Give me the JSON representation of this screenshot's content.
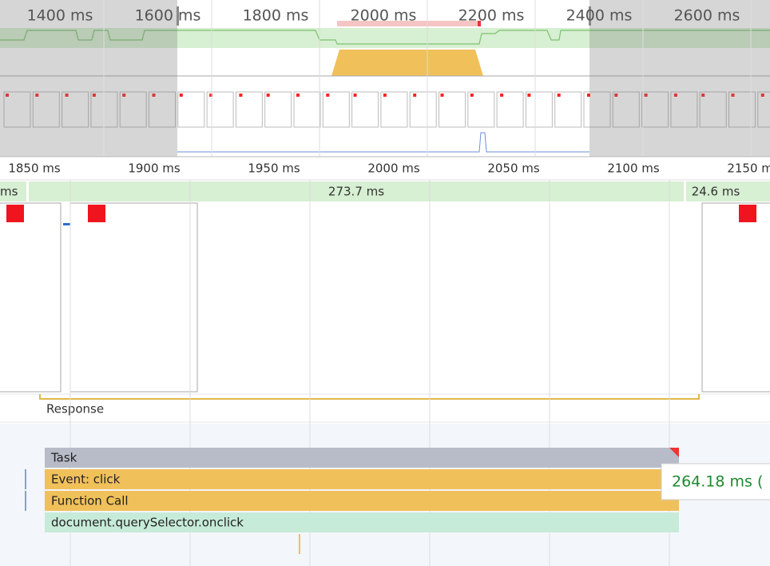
{
  "overview": {
    "ticks": [
      "1400 ms",
      "1600 ms",
      "1800 ms",
      "2000 ms",
      "2200 ms",
      "2400 ms",
      "2600 ms"
    ]
  },
  "ruler": {
    "ticks": [
      "1850 ms",
      "1900 ms",
      "1950 ms",
      "2000 ms",
      "2050 ms",
      "2100 ms",
      "2150 ms"
    ]
  },
  "frames": [
    "ms",
    "273.7 ms",
    "24.6 ms"
  ],
  "interactions": {
    "label": "Response"
  },
  "flame": {
    "rows": [
      "Task",
      "Event: click",
      "Function Call",
      "document.querySelector.onclick"
    ]
  },
  "tooltip": {
    "duration": "264.18 ms ("
  }
}
